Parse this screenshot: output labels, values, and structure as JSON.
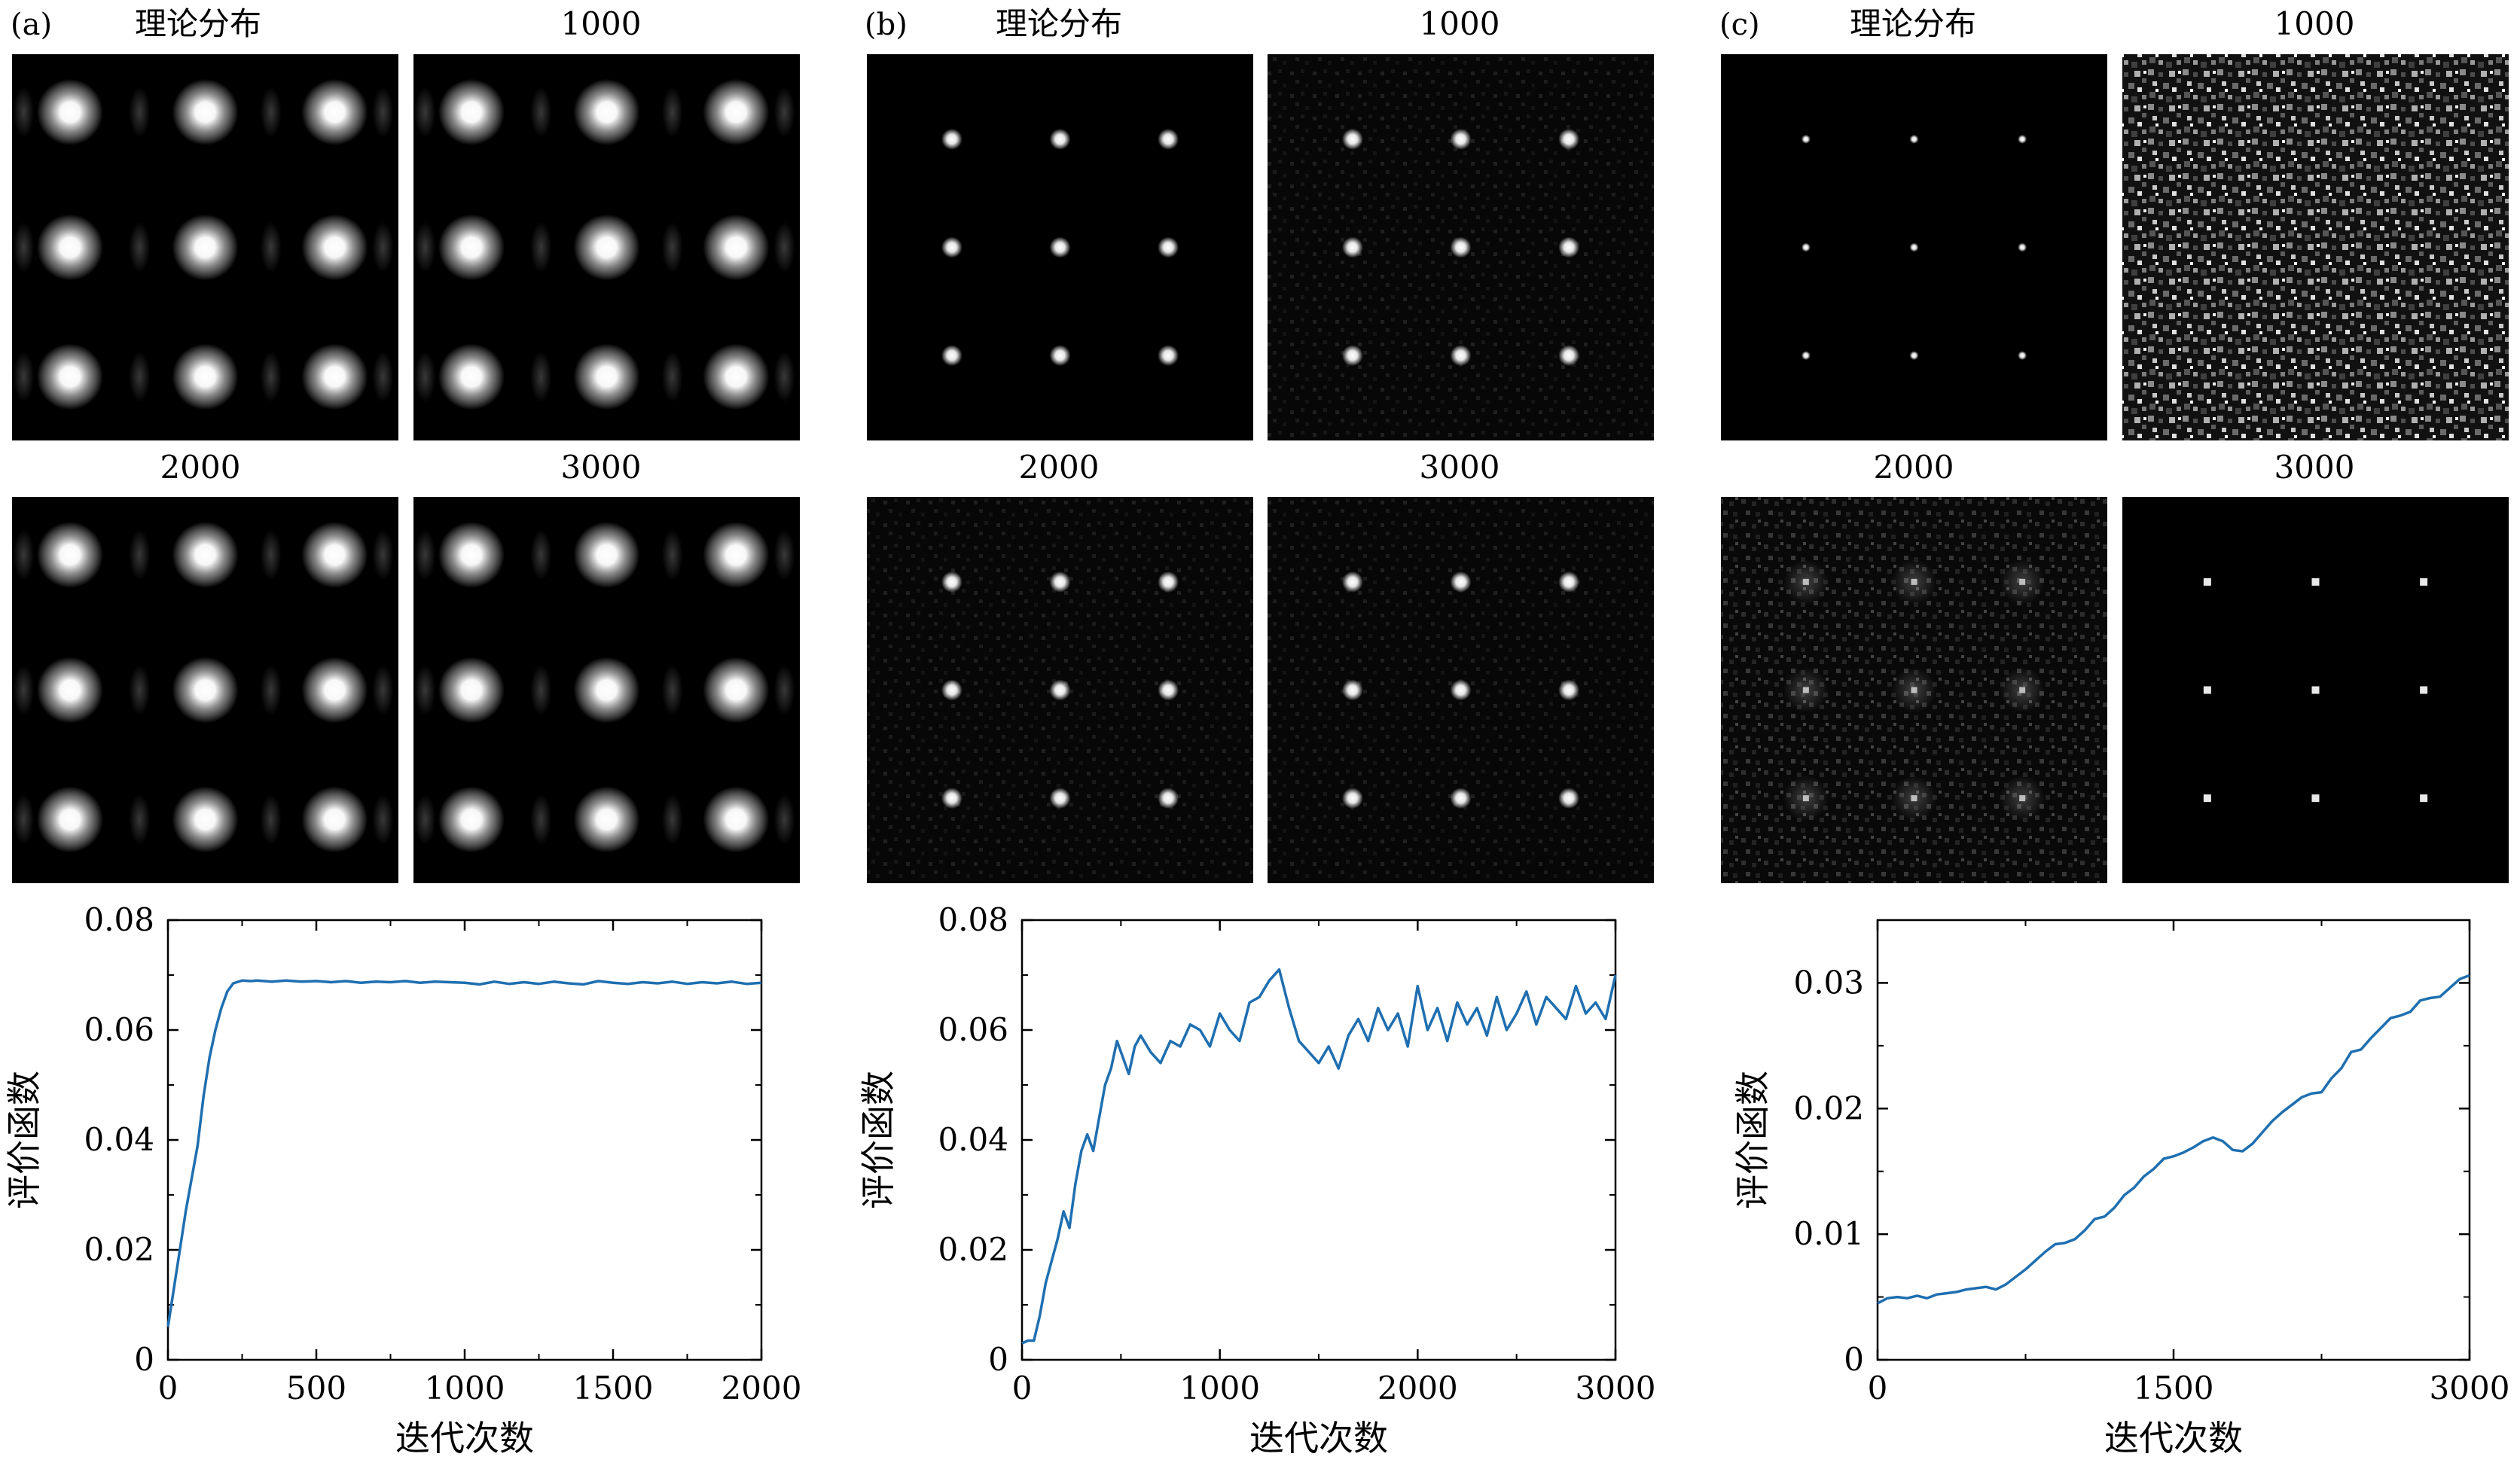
{
  "figure": {
    "panels": [
      {
        "label": "(a)",
        "image_titles": [
          "理论分布",
          "1000",
          "2000",
          "3000"
        ],
        "image_variants": [
          "blur",
          "blur",
          "blur",
          "blur"
        ]
      },
      {
        "label": "(b)",
        "image_titles": [
          "理论分布",
          "1000",
          "2000",
          "3000"
        ],
        "image_variants": [
          "dot",
          "dot-noise",
          "dot-noise",
          "dot-noise"
        ]
      },
      {
        "label": "(c)",
        "image_titles": [
          "理论分布",
          "1000",
          "2000",
          "3000"
        ],
        "image_variants": [
          "tiny",
          "speckle",
          "speckle-grid",
          "tiny-square"
        ]
      }
    ]
  },
  "chart_data": [
    {
      "type": "line",
      "panel": "(a)",
      "xlabel": "迭代次数",
      "ylabel": "评价函数",
      "xlim": [
        0,
        2000
      ],
      "ylim": [
        0,
        0.08
      ],
      "xticks": [
        0,
        500,
        1000,
        1500,
        2000
      ],
      "xtick_labels": [
        "0",
        "500",
        "1000",
        "1500",
        "2000"
      ],
      "yticks": [
        0,
        0.02,
        0.04,
        0.06,
        0.08
      ],
      "ytick_labels": [
        "0",
        "0.02",
        "0.04",
        "0.06",
        "0.08"
      ],
      "color": "#1f6fb0",
      "series": [
        {
          "name": "评价函数",
          "x": [
            0,
            20,
            40,
            60,
            80,
            100,
            120,
            140,
            160,
            180,
            200,
            220,
            250,
            280,
            300,
            350,
            400,
            450,
            500,
            550,
            600,
            650,
            700,
            750,
            800,
            850,
            900,
            950,
            1000,
            1050,
            1100,
            1150,
            1200,
            1250,
            1300,
            1350,
            1400,
            1450,
            1500,
            1550,
            1600,
            1650,
            1700,
            1750,
            1800,
            1850,
            1900,
            1950,
            2000
          ],
          "y": [
            0.006,
            0.013,
            0.02,
            0.027,
            0.033,
            0.039,
            0.048,
            0.055,
            0.06,
            0.064,
            0.067,
            0.0685,
            0.069,
            0.0689,
            0.069,
            0.0688,
            0.069,
            0.0688,
            0.0689,
            0.0687,
            0.0689,
            0.0686,
            0.0688,
            0.0687,
            0.0689,
            0.0686,
            0.0688,
            0.0687,
            0.0686,
            0.0683,
            0.0688,
            0.0684,
            0.0687,
            0.0684,
            0.0688,
            0.0685,
            0.0683,
            0.0689,
            0.0686,
            0.0684,
            0.0687,
            0.0685,
            0.0688,
            0.0684,
            0.0687,
            0.0685,
            0.0688,
            0.0684,
            0.0686
          ]
        }
      ]
    },
    {
      "type": "line",
      "panel": "(b)",
      "xlabel": "迭代次数",
      "ylabel": "评价函数",
      "xlim": [
        0,
        3000
      ],
      "ylim": [
        0,
        0.08
      ],
      "xticks": [
        0,
        1000,
        2000,
        3000
      ],
      "xtick_labels": [
        "0",
        "1000",
        "2000",
        "3000"
      ],
      "yticks": [
        0,
        0.02,
        0.04,
        0.06,
        0.08
      ],
      "ytick_labels": [
        "0",
        "0.02",
        "0.04",
        "0.06",
        "0.08"
      ],
      "color": "#1f6fb0",
      "series": [
        {
          "name": "评价函数",
          "x": [
            0,
            30,
            60,
            90,
            120,
            150,
            180,
            210,
            240,
            270,
            300,
            330,
            360,
            390,
            420,
            450,
            480,
            510,
            540,
            570,
            600,
            650,
            700,
            750,
            800,
            850,
            900,
            950,
            1000,
            1050,
            1100,
            1150,
            1200,
            1250,
            1300,
            1350,
            1400,
            1450,
            1500,
            1550,
            1600,
            1650,
            1700,
            1750,
            1800,
            1850,
            1900,
            1950,
            2000,
            2050,
            2100,
            2150,
            2200,
            2250,
            2300,
            2350,
            2400,
            2450,
            2500,
            2550,
            2600,
            2650,
            2700,
            2750,
            2800,
            2850,
            2900,
            2950,
            3000
          ],
          "y": [
            0.003,
            0.0035,
            0.0035,
            0.008,
            0.014,
            0.018,
            0.022,
            0.027,
            0.024,
            0.032,
            0.038,
            0.041,
            0.038,
            0.044,
            0.05,
            0.053,
            0.058,
            0.055,
            0.052,
            0.057,
            0.059,
            0.056,
            0.054,
            0.058,
            0.057,
            0.061,
            0.06,
            0.057,
            0.063,
            0.06,
            0.058,
            0.065,
            0.066,
            0.069,
            0.071,
            0.064,
            0.058,
            0.056,
            0.054,
            0.057,
            0.053,
            0.059,
            0.062,
            0.058,
            0.064,
            0.06,
            0.063,
            0.057,
            0.068,
            0.06,
            0.064,
            0.058,
            0.065,
            0.061,
            0.064,
            0.059,
            0.066,
            0.06,
            0.063,
            0.067,
            0.061,
            0.066,
            0.064,
            0.062,
            0.068,
            0.063,
            0.065,
            0.062,
            0.07
          ]
        }
      ]
    },
    {
      "type": "line",
      "panel": "(c)",
      "xlabel": "迭代次数",
      "ylabel": "评价函数",
      "xlim": [
        0,
        3000
      ],
      "ylim": [
        0,
        0.035
      ],
      "xticks": [
        0,
        1500,
        3000
      ],
      "xtick_labels": [
        "0",
        "1500",
        "3000"
      ],
      "yticks": [
        0,
        0.01,
        0.02,
        0.03
      ],
      "ytick_labels": [
        "0",
        "0.01",
        "0.02",
        "0.03"
      ],
      "color": "#1f6fb0",
      "series": [
        {
          "name": "评价函数",
          "x": [
            0,
            50,
            100,
            150,
            200,
            250,
            300,
            350,
            400,
            450,
            500,
            550,
            600,
            650,
            700,
            750,
            800,
            850,
            900,
            950,
            1000,
            1050,
            1100,
            1150,
            1200,
            1250,
            1300,
            1350,
            1400,
            1450,
            1500,
            1550,
            1600,
            1650,
            1700,
            1750,
            1800,
            1850,
            1900,
            1950,
            2000,
            2050,
            2100,
            2150,
            2200,
            2250,
            2300,
            2350,
            2400,
            2450,
            2500,
            2550,
            2600,
            2650,
            2700,
            2750,
            2800,
            2850,
            2900,
            2950,
            3000
          ],
          "y": [
            0.0045,
            0.0049,
            0.005,
            0.0049,
            0.0051,
            0.0049,
            0.0052,
            0.0053,
            0.0054,
            0.0056,
            0.0057,
            0.0058,
            0.0056,
            0.006,
            0.0066,
            0.0072,
            0.0079,
            0.0086,
            0.0092,
            0.0093,
            0.0096,
            0.0103,
            0.0112,
            0.0114,
            0.0121,
            0.0131,
            0.0137,
            0.0146,
            0.0152,
            0.016,
            0.0162,
            0.0165,
            0.0169,
            0.0174,
            0.0177,
            0.0174,
            0.0167,
            0.0166,
            0.0172,
            0.0181,
            0.019,
            0.0197,
            0.0203,
            0.0209,
            0.0212,
            0.0213,
            0.0224,
            0.0232,
            0.0245,
            0.0247,
            0.0256,
            0.0264,
            0.0272,
            0.0274,
            0.0277,
            0.0286,
            0.0288,
            0.0289,
            0.0296,
            0.0303,
            0.0306
          ]
        }
      ]
    }
  ]
}
